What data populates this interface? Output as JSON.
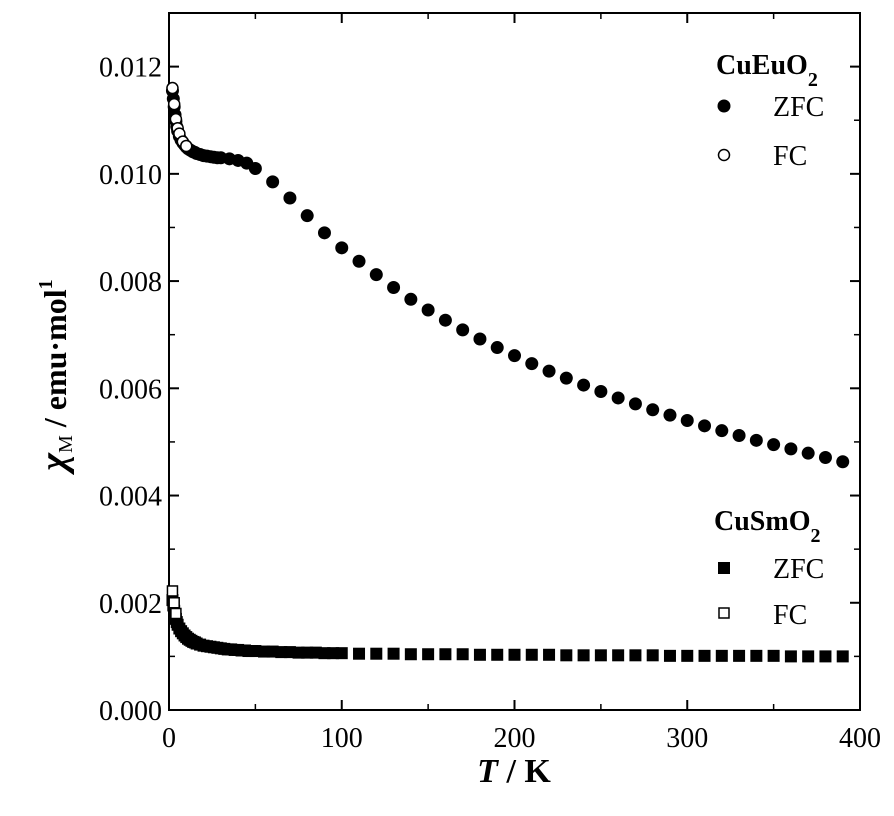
{
  "chart_data": {
    "type": "scatter",
    "x_axis": {
      "var": "T",
      "sep": " / ",
      "unit": "K",
      "min": 0,
      "max": 400,
      "ticks": [
        "0",
        "100",
        "200",
        "300",
        "400"
      ]
    },
    "y_axis": {
      "chi": "χ",
      "sub": "M",
      "sep": " / ",
      "unit": "emu·mol",
      "sup": "1",
      "min": 0,
      "max": 0.013,
      "ticks": [
        "0.000",
        "0.002",
        "0.004",
        "0.006",
        "0.008",
        "0.010",
        "0.012"
      ]
    },
    "grid": false,
    "legends": [
      {
        "title_main": "CuEuO",
        "title_sub": "2",
        "placement": "top-right",
        "entries": [
          {
            "label": "ZFC",
            "marker": "filled-circle"
          },
          {
            "label": "FC",
            "marker": "open-circle"
          }
        ]
      },
      {
        "title_main": "CuSmO",
        "title_sub": "2",
        "placement": "right-lower",
        "entries": [
          {
            "label": "ZFC",
            "marker": "filled-square"
          },
          {
            "label": "FC",
            "marker": "open-square"
          }
        ]
      }
    ],
    "series": [
      {
        "compound": "CuEuO2",
        "mode": "ZFC",
        "marker": "filled-circle",
        "x": [
          2,
          2.5,
          3,
          3.5,
          4,
          4.5,
          5,
          6,
          7,
          8,
          9,
          10,
          11,
          12,
          13,
          14,
          15,
          16,
          18,
          20,
          22,
          24,
          26,
          28,
          30,
          35,
          40,
          45,
          50,
          60,
          70,
          80,
          90,
          100,
          110,
          120,
          130,
          140,
          150,
          160,
          170,
          180,
          190,
          200,
          210,
          220,
          230,
          240,
          250,
          260,
          270,
          280,
          290,
          300,
          310,
          320,
          330,
          340,
          350,
          360,
          370,
          380,
          390
        ],
        "y": [
          0.01155,
          0.0114,
          0.01125,
          0.0111,
          0.01098,
          0.01088,
          0.0108,
          0.0107,
          0.01063,
          0.01058,
          0.01054,
          0.0105,
          0.01047,
          0.01045,
          0.01043,
          0.01041,
          0.0104,
          0.01038,
          0.01036,
          0.01034,
          0.01033,
          0.01032,
          0.01031,
          0.0103,
          0.0103,
          0.01028,
          0.01025,
          0.0102,
          0.0101,
          0.00985,
          0.00955,
          0.00922,
          0.0089,
          0.00862,
          0.00837,
          0.00812,
          0.00788,
          0.00766,
          0.00746,
          0.00727,
          0.00709,
          0.00692,
          0.00676,
          0.00661,
          0.00646,
          0.00632,
          0.00619,
          0.00606,
          0.00594,
          0.00582,
          0.00571,
          0.0056,
          0.0055,
          0.0054,
          0.0053,
          0.00521,
          0.00512,
          0.00503,
          0.00495,
          0.00487,
          0.00479,
          0.00471,
          0.00463
        ]
      },
      {
        "compound": "CuEuO2",
        "mode": "FC",
        "marker": "open-circle",
        "x": [
          2,
          3,
          4,
          5,
          6,
          8,
          10
        ],
        "y": [
          0.0116,
          0.0113,
          0.01102,
          0.01085,
          0.01075,
          0.0106,
          0.01052
        ]
      },
      {
        "compound": "CuSmO2",
        "mode": "ZFC",
        "marker": "filled-square",
        "x": [
          2,
          2.5,
          3,
          3.5,
          4,
          4.5,
          5,
          6,
          7,
          8,
          9,
          10,
          11,
          12,
          13,
          14,
          15,
          16,
          18,
          20,
          22,
          24,
          26,
          28,
          30,
          32,
          34,
          36,
          38,
          40,
          42,
          44,
          46,
          48,
          50,
          55,
          60,
          65,
          70,
          75,
          80,
          85,
          90,
          95,
          100,
          110,
          120,
          130,
          140,
          150,
          160,
          170,
          180,
          190,
          200,
          210,
          220,
          230,
          240,
          250,
          260,
          270,
          280,
          290,
          300,
          310,
          320,
          330,
          340,
          350,
          360,
          370,
          380,
          390
        ],
        "y": [
          0.00205,
          0.00195,
          0.00185,
          0.00177,
          0.0017,
          0.00164,
          0.00159,
          0.00152,
          0.00147,
          0.00143,
          0.00139,
          0.00136,
          0.00133,
          0.00131,
          0.00129,
          0.00127,
          0.00126,
          0.00124,
          0.00122,
          0.0012,
          0.00119,
          0.00118,
          0.00117,
          0.00116,
          0.00115,
          0.00114,
          0.00113,
          0.00113,
          0.00112,
          0.00112,
          0.00111,
          0.00111,
          0.0011,
          0.0011,
          0.0011,
          0.00109,
          0.00109,
          0.00108,
          0.00108,
          0.00107,
          0.00107,
          0.00107,
          0.00106,
          0.00106,
          0.00106,
          0.00105,
          0.00105,
          0.00105,
          0.00104,
          0.00104,
          0.00104,
          0.00104,
          0.00103,
          0.00103,
          0.00103,
          0.00103,
          0.00103,
          0.00102,
          0.00102,
          0.00102,
          0.00102,
          0.00102,
          0.00102,
          0.00101,
          0.00101,
          0.00101,
          0.00101,
          0.00101,
          0.00101,
          0.00101,
          0.001,
          0.001,
          0.001,
          0.001
        ]
      },
      {
        "compound": "CuSmO2",
        "mode": "FC",
        "marker": "open-square",
        "x": [
          2,
          3,
          4
        ],
        "y": [
          0.00222,
          0.002,
          0.0018
        ]
      }
    ]
  }
}
